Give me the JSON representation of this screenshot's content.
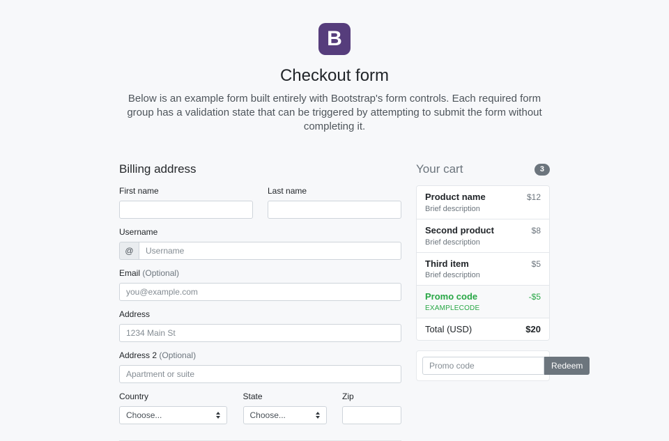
{
  "header": {
    "logo_letter": "B",
    "title": "Checkout form",
    "lead": "Below is an example form built entirely with Bootstrap's form controls. Each required form group has a validation state that can be triggered by attempting to submit the form without completing it."
  },
  "billing": {
    "heading": "Billing address",
    "fields": {
      "first_name": {
        "label": "First name",
        "value": ""
      },
      "last_name": {
        "label": "Last name",
        "value": ""
      },
      "username": {
        "label": "Username",
        "prefix": "@",
        "placeholder": "Username",
        "value": ""
      },
      "email": {
        "label": "Email",
        "optional": "(Optional)",
        "placeholder": "you@example.com",
        "value": ""
      },
      "address": {
        "label": "Address",
        "placeholder": "1234 Main St",
        "value": ""
      },
      "address2": {
        "label": "Address 2",
        "optional": "(Optional)",
        "placeholder": "Apartment or suite",
        "value": ""
      },
      "country": {
        "label": "Country",
        "selected": "Choose..."
      },
      "state": {
        "label": "State",
        "selected": "Choose..."
      },
      "zip": {
        "label": "Zip",
        "value": ""
      }
    }
  },
  "cart": {
    "heading": "Your cart",
    "badge_count": "3",
    "items": [
      {
        "name": "Product name",
        "description": "Brief description",
        "price": "$12"
      },
      {
        "name": "Second product",
        "description": "Brief description",
        "price": "$8"
      },
      {
        "name": "Third item",
        "description": "Brief description",
        "price": "$5"
      }
    ],
    "promo": {
      "name": "Promo code",
      "code": "EXAMPLECODE",
      "price": "-$5"
    },
    "total": {
      "label": "Total (USD)",
      "price": "$20"
    },
    "promo_form": {
      "placeholder": "Promo code",
      "button": "Redeem"
    }
  },
  "colors": {
    "brand_purple": "#563d7c",
    "success_green": "#28a745",
    "secondary_gray": "#6c757d",
    "page_background": "#f7f8fa"
  }
}
